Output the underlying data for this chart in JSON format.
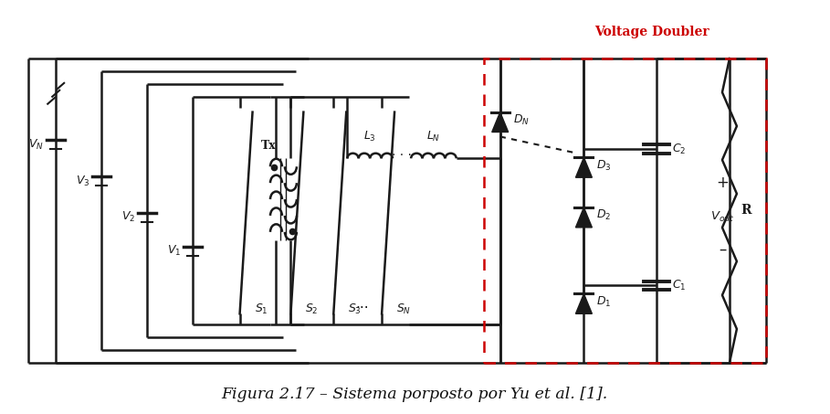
{
  "title": "Figura 2.17 – Sistema porposto por Yu et al. [1].",
  "voltage_doubler_label": "Voltage Doubler",
  "bg_color": "#ffffff",
  "line_color": "#1a1a1a",
  "red_color": "#cc0000",
  "title_fontsize": 12.5,
  "lw": 1.8
}
